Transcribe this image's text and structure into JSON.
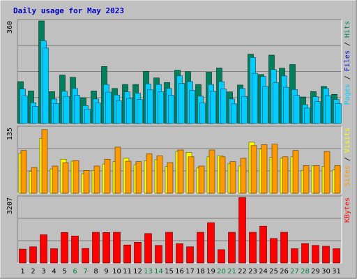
{
  "chart_data": {
    "type": "bar",
    "title": "Daily usage for May 2023",
    "categories": [
      "1",
      "2",
      "3",
      "4",
      "5",
      "6",
      "7",
      "8",
      "9",
      "10",
      "11",
      "12",
      "13",
      "14",
      "15",
      "16",
      "17",
      "18",
      "19",
      "20",
      "21",
      "22",
      "23",
      "24",
      "25",
      "26",
      "27",
      "28",
      "29",
      "30",
      "31"
    ],
    "weekend_days": [
      "6",
      "7",
      "13",
      "14",
      "20",
      "21",
      "27",
      "28"
    ],
    "colors": {
      "title": "#0000CC",
      "hits": "#00805C",
      "files": "#00CCFF",
      "pages": "#00CCFF",
      "visits": "#FFFF00",
      "sites": "#FF9900",
      "kbytes": "#FF0000",
      "weekday_label": "#000000",
      "weekend_label": "#008040",
      "plot_bg": "#C0C0C0",
      "frame_bg": "#C0C0C0"
    },
    "panels": [
      {
        "name": "hits-files-pages",
        "ymax_label": "360",
        "ymax": 360,
        "right_label": [
          {
            "text": "Pages",
            "color": "#00CCFF"
          },
          {
            "text": " / ",
            "color": "#000000"
          },
          {
            "text": "Files",
            "color": "#0000CC"
          },
          {
            "text": " / ",
            "color": "#000000"
          },
          {
            "text": "Hits",
            "color": "#00805C"
          }
        ],
        "series": [
          {
            "name": "Hits",
            "color": "#00805C",
            "values": [
              147,
              114,
              360,
              112,
              170,
              162,
              90,
              114,
              200,
              123,
              137,
              137,
              183,
              160,
              144,
              187,
              182,
              137,
              180,
              195,
              111,
              135,
              243,
              172,
              240,
              194,
              207,
              93,
              112,
              130,
              102
            ]
          },
          {
            "name": "Files",
            "color": "#00CCFF",
            "values": [
              121,
              73,
              290,
              86,
              113,
              123,
              63,
              86,
              137,
              100,
              111,
              106,
              139,
              137,
              123,
              167,
              147,
              96,
              137,
              147,
              86,
              123,
              232,
              165,
              189,
              167,
              119,
              66,
              94,
              123,
              84
            ]
          },
          {
            "name": "Pages",
            "color": "#00CCFF",
            "values": [
              97,
              60,
              265,
              70,
              95,
              99,
              50,
              72,
              110,
              80,
              88,
              84,
              118,
              112,
              99,
              141,
              116,
              72,
              113,
              121,
              69,
              95,
              176,
              130,
              143,
              127,
              99,
              54,
              77,
              98,
              70
            ]
          }
        ]
      },
      {
        "name": "visits-sites",
        "ymax_label": "135",
        "ymax": 135,
        "right_label": [
          {
            "text": "Sites",
            "color": "#FF9900"
          },
          {
            "text": " / ",
            "color": "#000000"
          },
          {
            "text": "Visits",
            "color": "#FFFF00"
          }
        ],
        "series": [
          {
            "name": "Visits",
            "color": "#FFFF00",
            "values": [
              82,
              45,
              113,
              50,
              70,
              66,
              40,
              47,
              60,
              65,
              72,
              58,
              67,
              69,
              55,
              86,
              84,
              52,
              75,
              77,
              61,
              56,
              105,
              91,
              74,
              72,
              75,
              47,
              56,
              55,
              48
            ]
          },
          {
            "name": "Sites",
            "color": "#FF9900",
            "values": [
              88,
              53,
              131,
              56,
              63,
              67,
              47,
              56,
              70,
              95,
              66,
              65,
              81,
              77,
              63,
              89,
              75,
              56,
              89,
              75,
              65,
              72,
              98,
              100,
              101,
              75,
              88,
              57,
              57,
              86,
              57
            ]
          }
        ]
      },
      {
        "name": "kbytes",
        "ymax_label": "3207",
        "ymax": 3207,
        "right_label": [
          {
            "text": "KBytes",
            "color": "#FF0000"
          }
        ],
        "series": [
          {
            "name": "KBytes",
            "color": "#FF0000",
            "values": [
              680,
              790,
              1380,
              700,
              1490,
              1320,
              710,
              1500,
              1490,
              1500,
              880,
              1010,
              1440,
              860,
              1500,
              940,
              790,
              1500,
              1970,
              650,
              1500,
              3207,
              1500,
              1800,
              1200,
              1500,
              700,
              950,
              860,
              820,
              700
            ]
          }
        ]
      }
    ]
  }
}
